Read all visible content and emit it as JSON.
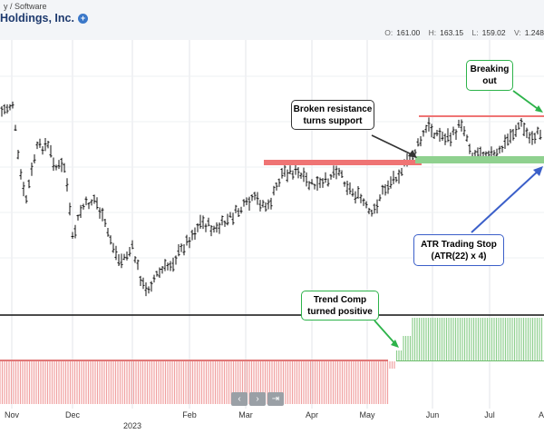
{
  "header": {
    "sector_text": "y / Software",
    "company_name": "Holdings, Inc.",
    "info_icon": "info-icon",
    "ohlc": {
      "open_label": "O:",
      "open": "161.00",
      "high_label": "H:",
      "high": "163.15",
      "low_label": "L:",
      "low": "159.02",
      "volume_label": "V:",
      "volume": "1.248"
    }
  },
  "colors": {
    "up_green": "#2db34a",
    "resistance_red": "#ef7474",
    "support_green": "#8fd18f",
    "hist_positive": "#8ecf8e",
    "hist_negative": "#f0a0a0",
    "callout_blue": "#3b5fc9",
    "callout_black": "#333333"
  },
  "annotations": {
    "breaking_out": "Breaking out",
    "broken_resistance": "Broken resistance turns support",
    "atr_stop_line1": "ATR Trading Stop",
    "atr_stop_line2": "(ATR(22) x 4)",
    "trend_comp": "Trend Comp turned positive"
  },
  "x_axis": {
    "labels": [
      "Nov",
      "Dec",
      "2023",
      "Feb",
      "Mar",
      "Apr",
      "May",
      "Jun",
      "Jul",
      "A"
    ]
  },
  "nav_buttons": [
    "‹",
    "›",
    "⇥"
  ],
  "chart_data": {
    "type": "bar",
    "price_levels": {
      "broken_resistance": "~151",
      "new_resistance": "~164",
      "atr_trading_stop": "~152"
    },
    "trend_comp": {
      "negative_until": "mid-May",
      "positive_from": "late May"
    }
  }
}
